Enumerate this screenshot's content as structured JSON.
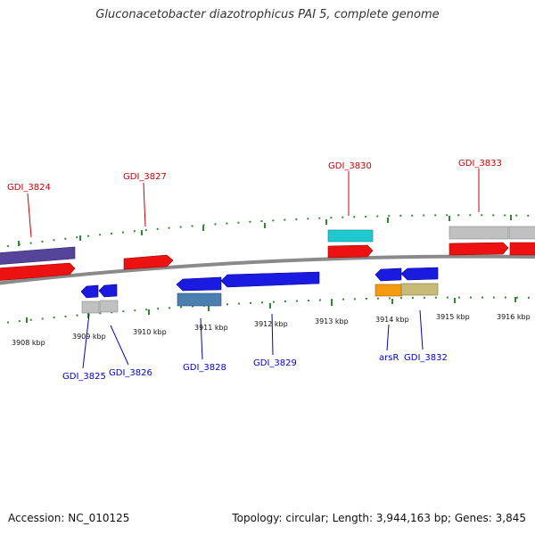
{
  "title": "Gluconacetobacter diazotrophicus PAI 5, complete genome",
  "footer": {
    "accession": "Accession: NC_010125",
    "summary": "Topology: circular; Length: 3,944,163 bp; Genes: 3,845"
  },
  "colors": {
    "backbone": "#8a8a8a",
    "tick": "#2f8a2f",
    "forward_label": "#cc0000",
    "reverse_label": "#0000cc",
    "cds_red": "#ee1111",
    "cds_blue": "#1a1ae0",
    "rna_gray": "#c0c0c0",
    "cyan": "#20c8d0",
    "purple": "#55449a",
    "steelblue": "#4a7fb0",
    "orange": "#f39a10",
    "khaki": "#c8bb78"
  },
  "tick_labels": [
    "3908 kbp",
    "3909 kbp",
    "3910 kbp",
    "3911 kbp",
    "3912 kbp",
    "3913 kbp",
    "3914 kbp",
    "3915 kbp",
    "3916 kbp"
  ],
  "gene_labels": {
    "forward": [
      "GDI_3824",
      "GDI_3827",
      "GDI_3830",
      "GDI_3833"
    ],
    "reverse": [
      "GDI_3825",
      "GDI_3826",
      "GDI_3828",
      "GDI_3829",
      "arsR",
      "GDI_3832"
    ]
  }
}
